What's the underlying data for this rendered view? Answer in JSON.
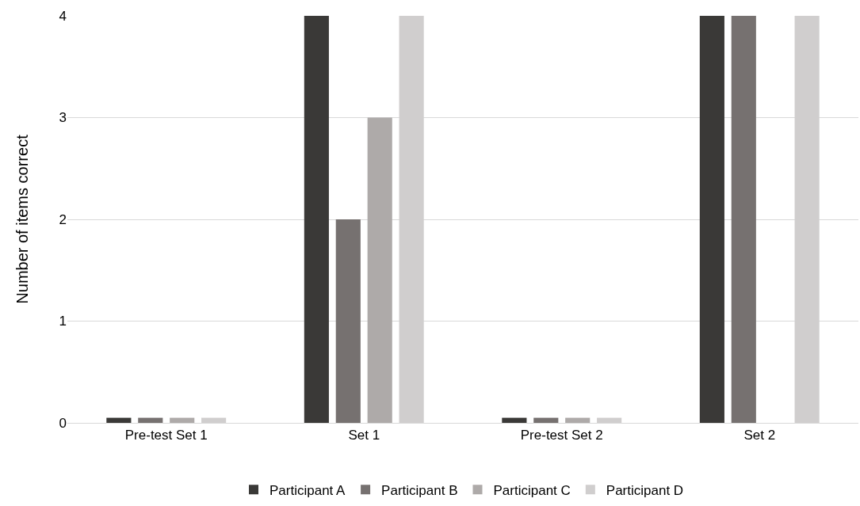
{
  "chart_data": {
    "type": "bar",
    "ylabel": "Number of items correct",
    "categories": [
      "Pre-test Set 1",
      "Set 1",
      "Pre-test Set 2",
      "Set 2"
    ],
    "series": [
      {
        "name": "Participant A",
        "color": "#3a3937",
        "values": [
          0.05,
          4,
          0.05,
          4
        ]
      },
      {
        "name": "Participant B",
        "color": "#767170",
        "values": [
          0.05,
          2,
          0.05,
          4
        ]
      },
      {
        "name": "Participant C",
        "color": "#aeaaa9",
        "values": [
          0.05,
          3,
          0.05,
          0
        ]
      },
      {
        "name": "Participant D",
        "color": "#d0cece",
        "values": [
          0.05,
          4,
          0.05,
          4
        ]
      }
    ],
    "ylim": [
      0,
      4
    ],
    "yticks": [
      0,
      1,
      2,
      3,
      4
    ],
    "grid": "y",
    "legend": "bottom"
  }
}
